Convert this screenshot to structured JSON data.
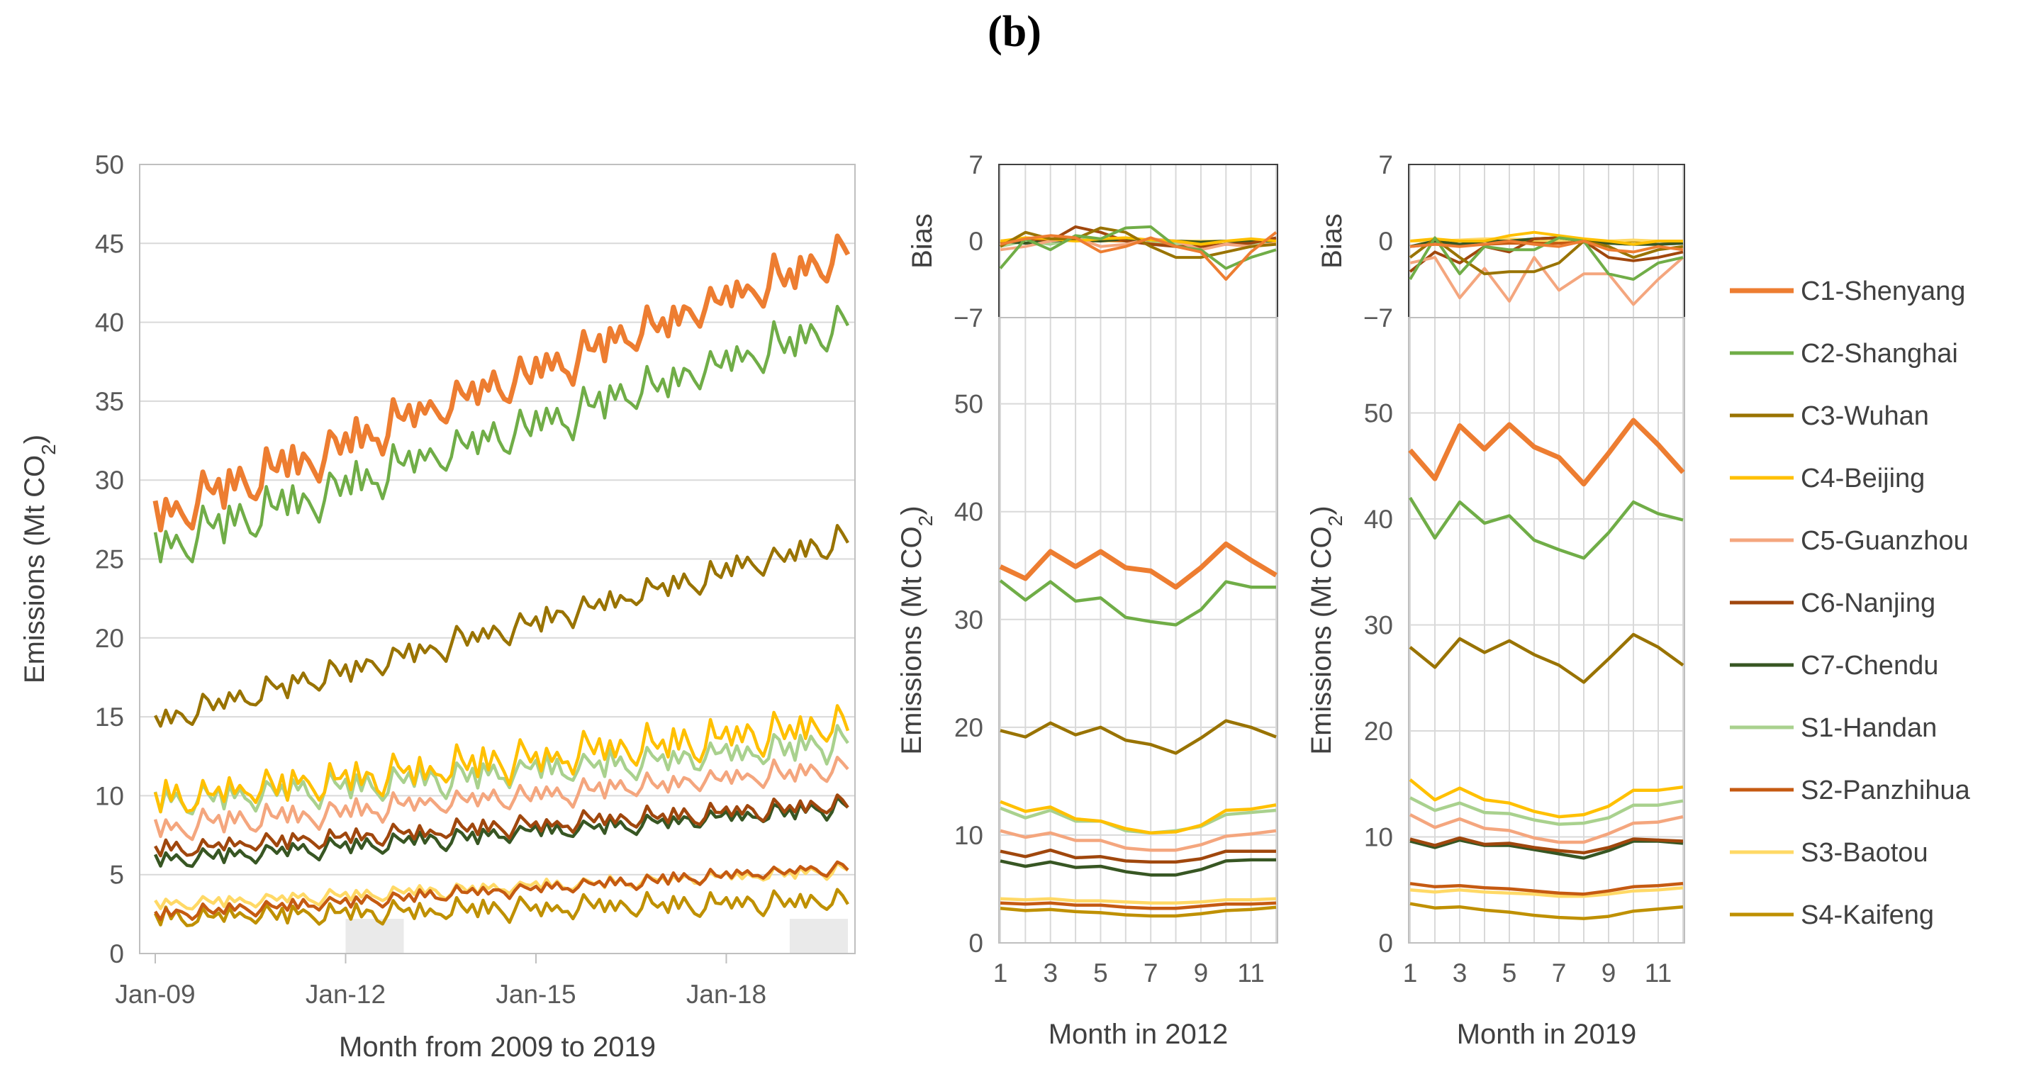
{
  "panel_label": "(b)",
  "colors": {
    "C1-Shenyang": "#ED7D31",
    "C2-Shanghai": "#70AD47",
    "C3-Wuhan": "#997300",
    "C4-Beijing": "#FFC000",
    "C5-Guanzhou": "#F4A67E",
    "C6-Nanjing": "#A0470D",
    "C7-Chendu": "#375623",
    "S1-Handan": "#A9D18E",
    "S2-Panzhihua": "#C55A11",
    "S3-Baotou": "#FFD966",
    "S4-Kaifeng": "#BF9000"
  },
  "legend": [
    "C1-Shenyang",
    "C2-Shanghai",
    "C3-Wuhan",
    "C4-Beijing",
    "C5-Guanzhou",
    "C6-Nanjing",
    "C7-Chendu",
    "S1-Handan",
    "S2-Panzhihua",
    "S3-Baotou",
    "S4-Kaifeng"
  ],
  "chart_data": [
    {
      "id": "main",
      "type": "line",
      "xlabel": "Month from 2009 to 2019",
      "ylabel": "Emissions (Mt CO2)",
      "ylim": [
        0,
        50
      ],
      "yticks": [
        0,
        5,
        10,
        15,
        20,
        25,
        30,
        35,
        40,
        45,
        50
      ],
      "xticks": [
        "Jan-09",
        "Jan-12",
        "Jan-15",
        "Jan-18"
      ],
      "grid": "horizontal",
      "n_months": 132,
      "shaded_periods": [
        "2012",
        "2019"
      ],
      "series": [
        {
          "name": "C1-Shenyang",
          "start": 27.8,
          "end": 44.5,
          "amplitude": 1.6
        },
        {
          "name": "C2-Shanghai",
          "start": 25.8,
          "end": 40.0,
          "amplitude": 1.6
        },
        {
          "name": "C3-Wuhan",
          "start": 14.8,
          "end": 26.3,
          "amplitude": 1.0
        },
        {
          "name": "C4-Beijing",
          "start": 9.8,
          "end": 14.6,
          "amplitude": 1.4
        },
        {
          "name": "C5-Guanzhou",
          "start": 8.0,
          "end": 11.8,
          "amplitude": 0.9
        },
        {
          "name": "C6-Nanjing",
          "start": 6.6,
          "end": 9.5,
          "amplitude": 0.7
        },
        {
          "name": "C7-Chendu",
          "start": 5.9,
          "end": 9.3,
          "amplitude": 0.7
        },
        {
          "name": "S1-Handan",
          "start": 9.6,
          "end": 13.4,
          "amplitude": 1.2
        },
        {
          "name": "S2-Panzhihua",
          "start": 2.5,
          "end": 5.5,
          "amplitude": 0.5
        },
        {
          "name": "S3-Baotou",
          "start": 3.1,
          "end": 5.3,
          "amplitude": 0.5
        },
        {
          "name": "S4-Kaifeng",
          "start": 2.3,
          "end": 3.4,
          "amplitude": 0.8
        }
      ]
    },
    {
      "id": "y2012",
      "type": "line",
      "xlabel": "Month in 2012",
      "ylabel": "Emissions (Mt CO2)",
      "bias_label": "Bias",
      "x": [
        1,
        2,
        3,
        4,
        5,
        6,
        7,
        8,
        9,
        10,
        11,
        12
      ],
      "xticks": [
        1,
        3,
        5,
        7,
        9,
        11
      ],
      "ylim": [
        0,
        58
      ],
      "yticks": [
        0,
        10,
        20,
        30,
        40,
        50
      ],
      "bias_ylim": [
        -7,
        7
      ],
      "bias_yticks": [
        7,
        0,
        -7
      ],
      "series": [
        {
          "name": "C1-Shenyang",
          "values": [
            34.9,
            33.8,
            36.3,
            34.9,
            36.3,
            34.8,
            34.5,
            33.0,
            34.8,
            37.0,
            35.5,
            34.1
          ],
          "bias": [
            -0.3,
            0.2,
            0.5,
            0.3,
            -1.0,
            -0.5,
            0.3,
            -0.5,
            -1.0,
            -3.5,
            -1.0,
            0.8
          ]
        },
        {
          "name": "C2-Shanghai",
          "values": [
            33.6,
            31.8,
            33.5,
            31.7,
            32.0,
            30.2,
            29.8,
            29.5,
            30.9,
            33.5,
            33.0,
            33.0
          ],
          "bias": [
            -2.5,
            0.2,
            -0.8,
            0.5,
            0.2,
            1.2,
            1.3,
            -0.5,
            -0.8,
            -2.5,
            -1.5,
            -0.8
          ]
        },
        {
          "name": "C3-Wuhan",
          "values": [
            19.7,
            19.1,
            20.4,
            19.3,
            20.0,
            18.8,
            18.4,
            17.6,
            19.0,
            20.6,
            20.0,
            19.1
          ],
          "bias": [
            -0.5,
            0.8,
            0.2,
            0.2,
            1.2,
            0.8,
            -0.5,
            -1.5,
            -1.5,
            -1.0,
            -0.5,
            -0.3
          ]
        },
        {
          "name": "C4-Beijing",
          "values": [
            13.1,
            12.2,
            12.6,
            11.5,
            11.3,
            10.6,
            10.2,
            10.3,
            10.9,
            12.3,
            12.4,
            12.8
          ],
          "bias": [
            0.0,
            0.3,
            0.2,
            0.0,
            0.2,
            0.3,
            0.1,
            0.0,
            -0.3,
            0.0,
            0.2,
            0.0
          ]
        },
        {
          "name": "C5-Guanzhou",
          "values": [
            10.4,
            9.8,
            10.2,
            9.5,
            9.5,
            8.8,
            8.6,
            8.6,
            9.1,
            9.9,
            10.1,
            10.4
          ],
          "bias": [
            -0.8,
            -0.5,
            0.0,
            0.3,
            -0.5,
            -0.3,
            0.2,
            0.0,
            -0.8,
            -0.3,
            -0.5,
            -0.2
          ]
        },
        {
          "name": "C6-Nanjing",
          "values": [
            8.5,
            8.0,
            8.6,
            7.9,
            8.0,
            7.6,
            7.5,
            7.5,
            7.8,
            8.5,
            8.5,
            8.5
          ],
          "bias": [
            -0.2,
            0.3,
            0.0,
            1.3,
            0.8,
            0.0,
            -0.3,
            -0.5,
            -0.5,
            -0.3,
            -0.2,
            0.3
          ]
        },
        {
          "name": "C7-Chendu",
          "values": [
            7.6,
            7.1,
            7.5,
            7.0,
            7.1,
            6.6,
            6.3,
            6.3,
            6.8,
            7.6,
            7.7,
            7.7
          ],
          "bias": [
            0.0,
            -0.2,
            0.0,
            0.1,
            0.0,
            0.2,
            0.1,
            0.0,
            -0.1,
            0.0,
            0.0,
            0.0
          ]
        },
        {
          "name": "S1-Handan",
          "values": [
            12.5,
            11.6,
            12.3,
            11.3,
            11.3,
            10.4,
            10.2,
            10.4,
            10.8,
            11.9,
            12.1,
            12.3
          ],
          "bias": [
            -0.5,
            0.0,
            -0.3,
            0.2,
            0.1,
            0.3,
            0.0,
            -0.2,
            -0.5,
            -0.3,
            -0.2,
            -0.1
          ]
        },
        {
          "name": "S2-Panzhihua",
          "values": [
            3.7,
            3.6,
            3.7,
            3.5,
            3.5,
            3.3,
            3.2,
            3.2,
            3.4,
            3.6,
            3.6,
            3.7
          ],
          "bias": [
            0.0,
            0.1,
            0.0,
            0.2,
            0.1,
            0.0,
            -0.1,
            -0.2,
            -0.2,
            0.0,
            0.0,
            0.1
          ]
        },
        {
          "name": "S3-Baotou",
          "values": [
            4.1,
            4.0,
            4.1,
            3.9,
            3.9,
            3.8,
            3.7,
            3.7,
            3.8,
            4.0,
            4.0,
            4.1
          ],
          "bias": [
            0.0,
            0.0,
            0.1,
            0.0,
            0.0,
            0.0,
            0.0,
            0.0,
            0.0,
            0.0,
            0.0,
            0.0
          ]
        },
        {
          "name": "S4-Kaifeng",
          "values": [
            3.2,
            3.0,
            3.1,
            2.9,
            2.8,
            2.6,
            2.5,
            2.5,
            2.7,
            3.0,
            3.1,
            3.3
          ],
          "bias": [
            0.0,
            0.1,
            0.0,
            0.1,
            0.0,
            0.0,
            0.0,
            0.0,
            0.0,
            0.0,
            0.0,
            0.0
          ]
        }
      ]
    },
    {
      "id": "y2019",
      "type": "line",
      "xlabel": "Month in 2019",
      "ylabel": "Emissions (Mt CO2)",
      "bias_label": "Bias",
      "x": [
        1,
        2,
        3,
        4,
        5,
        6,
        7,
        8,
        9,
        10,
        11,
        12
      ],
      "xticks": [
        1,
        3,
        5,
        7,
        9,
        11
      ],
      "ylim": [
        0,
        59
      ],
      "yticks": [
        0,
        10,
        20,
        30,
        40,
        50
      ],
      "bias_ylim": [
        -7,
        7
      ],
      "bias_yticks": [
        7,
        0,
        -7
      ],
      "series": [
        {
          "name": "C1-Shenyang",
          "values": [
            46.5,
            43.8,
            48.8,
            46.6,
            48.9,
            46.8,
            45.8,
            43.3,
            46.2,
            49.3,
            47.0,
            44.4
          ],
          "bias": [
            -0.5,
            -0.3,
            -0.5,
            -0.3,
            0.0,
            -0.3,
            -0.5,
            0.0,
            -0.8,
            -1.0,
            -0.5,
            -0.8
          ]
        },
        {
          "name": "C2-Shanghai",
          "values": [
            42.0,
            38.2,
            41.6,
            39.6,
            40.3,
            38.0,
            37.1,
            36.3,
            38.7,
            41.6,
            40.5,
            39.9
          ],
          "bias": [
            -3.5,
            0.3,
            -3.0,
            -0.5,
            -0.8,
            -0.8,
            0.3,
            0.0,
            -3.0,
            -3.5,
            -2.0,
            -1.5
          ]
        },
        {
          "name": "C3-Wuhan",
          "values": [
            27.9,
            26.0,
            28.7,
            27.4,
            28.5,
            27.2,
            26.2,
            24.6,
            26.8,
            29.1,
            27.9,
            26.2
          ],
          "bias": [
            -1.5,
            0.2,
            -1.5,
            -3.0,
            -2.8,
            -2.8,
            -2.0,
            0.0,
            -0.5,
            -1.5,
            -0.8,
            -0.5
          ]
        },
        {
          "name": "C4-Beijing",
          "values": [
            15.4,
            13.5,
            14.6,
            13.5,
            13.2,
            12.4,
            11.9,
            12.1,
            12.9,
            14.4,
            14.4,
            14.7
          ],
          "bias": [
            0.0,
            0.2,
            0.0,
            0.0,
            0.5,
            0.8,
            0.5,
            0.2,
            0.0,
            -0.3,
            0.0,
            0.0
          ]
        },
        {
          "name": "C5-Guanzhou",
          "values": [
            12.1,
            10.9,
            11.7,
            10.8,
            10.6,
            9.9,
            9.5,
            9.5,
            10.3,
            11.3,
            11.4,
            11.9
          ],
          "bias": [
            -2.0,
            -1.5,
            -5.2,
            -2.5,
            -5.5,
            -1.5,
            -4.5,
            -3.0,
            -3.0,
            -5.8,
            -3.5,
            -1.5
          ]
        },
        {
          "name": "C6-Nanjing",
          "values": [
            9.8,
            9.2,
            9.9,
            9.3,
            9.4,
            9.0,
            8.7,
            8.5,
            9.0,
            9.8,
            9.7,
            9.6
          ],
          "bias": [
            -2.8,
            -1.0,
            -2.0,
            -0.5,
            -1.0,
            0.2,
            0.3,
            0.0,
            -1.5,
            -1.8,
            -1.5,
            -1.0
          ]
        },
        {
          "name": "C7-Chendu",
          "values": [
            9.6,
            9.0,
            9.7,
            9.2,
            9.2,
            8.8,
            8.4,
            8.0,
            8.7,
            9.6,
            9.6,
            9.4
          ],
          "bias": [
            -0.5,
            0.0,
            -0.3,
            0.0,
            0.0,
            0.2,
            0.3,
            0.0,
            -0.2,
            -0.3,
            -0.3,
            -0.2
          ]
        },
        {
          "name": "S1-Handan",
          "values": [
            13.7,
            12.5,
            13.2,
            12.3,
            12.2,
            11.6,
            11.2,
            11.3,
            11.8,
            13.0,
            13.0,
            13.4
          ],
          "bias": [
            -0.5,
            0.0,
            -0.3,
            0.0,
            0.0,
            0.2,
            0.3,
            0.0,
            -0.2,
            -0.3,
            -0.3,
            -0.2
          ]
        },
        {
          "name": "S2-Panzhihua",
          "values": [
            5.6,
            5.3,
            5.4,
            5.2,
            5.1,
            4.9,
            4.7,
            4.6,
            4.9,
            5.3,
            5.4,
            5.6
          ],
          "bias": [
            -0.5,
            -0.3,
            -0.3,
            -0.3,
            -0.2,
            -0.2,
            -0.2,
            -0.1,
            -0.2,
            -0.3,
            -0.3,
            -0.2
          ]
        },
        {
          "name": "S3-Baotou",
          "values": [
            5.0,
            4.8,
            5.0,
            4.8,
            4.7,
            4.6,
            4.4,
            4.4,
            4.6,
            4.9,
            5.0,
            5.2
          ],
          "bias": [
            0.0,
            0.0,
            0.1,
            0.2,
            0.2,
            0.1,
            0.0,
            0.0,
            0.0,
            0.1,
            0.0,
            0.0
          ]
        },
        {
          "name": "S4-Kaifeng",
          "values": [
            3.7,
            3.3,
            3.4,
            3.1,
            2.9,
            2.6,
            2.4,
            2.3,
            2.5,
            3.0,
            3.2,
            3.4
          ],
          "bias": [
            0.0,
            0.0,
            0.0,
            0.0,
            0.0,
            0.0,
            0.0,
            0.0,
            0.0,
            0.0,
            0.0,
            0.0
          ]
        }
      ]
    }
  ]
}
